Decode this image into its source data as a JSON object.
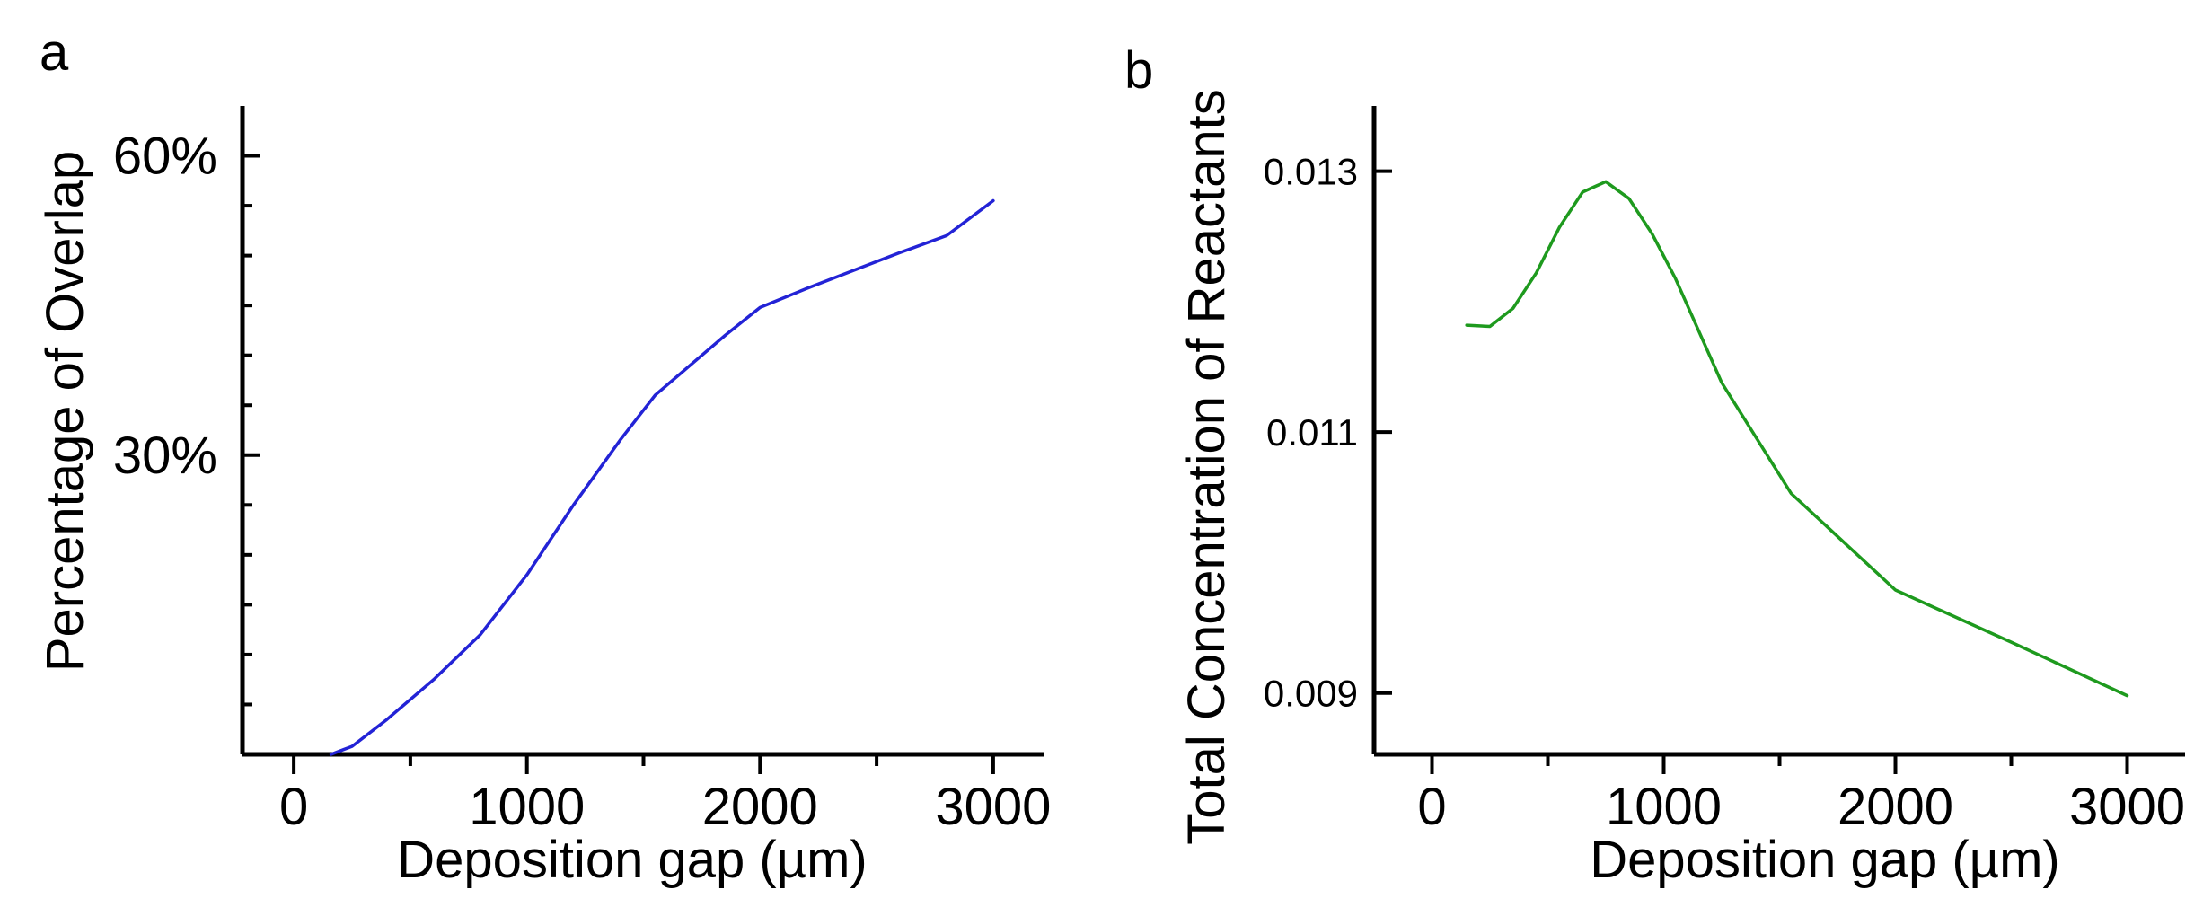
{
  "chart_data": [
    {
      "type": "line",
      "panel_label": "a",
      "xlabel": "Deposition gap (µm)",
      "ylabel": "Percentage of Overlap",
      "xlim": [
        -220,
        3220
      ],
      "ylim": [
        0,
        0.65
      ],
      "x_ticks": [
        0,
        1000,
        2000,
        3000
      ],
      "x_tick_labels": [
        "0",
        "1000",
        "2000",
        "3000"
      ],
      "y_ticks": [
        0.3,
        0.6
      ],
      "y_tick_labels": [
        "30%",
        "60%"
      ],
      "color": "#2323d6",
      "series": [
        {
          "name": "overlap",
          "x": [
            160,
            250,
            400,
            600,
            800,
            1000,
            1200,
            1400,
            1550,
            1700,
            1850,
            2000,
            2200,
            2400,
            2600,
            2800,
            3000
          ],
          "y": [
            0.0,
            0.008,
            0.035,
            0.075,
            0.12,
            0.18,
            0.25,
            0.315,
            0.36,
            0.39,
            0.42,
            0.448,
            0.467,
            0.485,
            0.503,
            0.52,
            0.555
          ]
        }
      ]
    },
    {
      "type": "line",
      "panel_label": "b",
      "xlabel": "Deposition gap (µm)",
      "ylabel": "Total Concentration of Reactants",
      "xlim": [
        -250,
        3250
      ],
      "ylim": [
        0.00853,
        0.0135
      ],
      "x_ticks": [
        0,
        1000,
        2000,
        3000
      ],
      "x_tick_labels": [
        "0",
        "1000",
        "2000",
        "3000"
      ],
      "y_ticks": [
        0.009,
        0.011,
        0.013
      ],
      "y_tick_labels": [
        "0.009",
        "0.011",
        "0.013"
      ],
      "color": "#1e9a1e",
      "series": [
        {
          "name": "concentration",
          "x": [
            150,
            250,
            350,
            450,
            550,
            650,
            750,
            850,
            950,
            1050,
            1250,
            1550,
            2000,
            2500,
            3000
          ],
          "y": [
            0.01182,
            0.01181,
            0.01195,
            0.01222,
            0.01257,
            0.01284,
            0.01292,
            0.01279,
            0.01252,
            0.01218,
            0.01138,
            0.01053,
            0.00979,
            0.00939,
            0.00898
          ]
        }
      ]
    }
  ]
}
